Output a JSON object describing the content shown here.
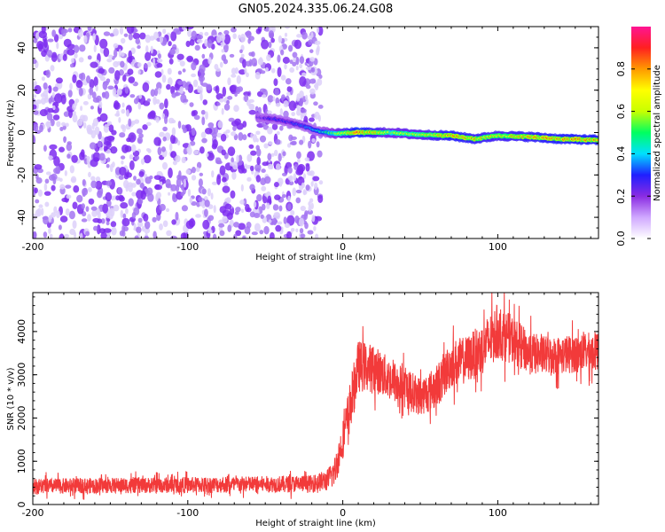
{
  "title": "GN05.2024.335.06.24.G08",
  "colors": {
    "snr_line": "#f23a3a",
    "scatter_core": "#7c2cf0",
    "scatter_mid": "#a575f2",
    "scatter_faint": "#ddd0fa"
  },
  "chart_data": [
    {
      "type": "heatmap",
      "title": "GN05.2024.335.06.24.G08",
      "xlabel": "Height of straight line (km)",
      "ylabel": "Frequency (Hz)",
      "xlim": [
        -200,
        165
      ],
      "ylim": [
        -50,
        50
      ],
      "xticks": [
        -200,
        -100,
        0,
        100
      ],
      "yticks": [
        -40,
        -20,
        0,
        20,
        40
      ],
      "colorbar": {
        "label": "Normalized spectral amplitude",
        "range": [
          0,
          1
        ],
        "ticks": [
          0.0,
          0.2,
          0.4,
          0.6,
          0.8
        ],
        "tick_labels": [
          "0.0",
          "0.2",
          "0.4",
          "0.6",
          "0.8"
        ],
        "colormap": [
          "#ffffff",
          "#d0a8ff",
          "#8a2be2",
          "#1f1fff",
          "#00e0ff",
          "#00ff60",
          "#c8ff00",
          "#ffff00",
          "#ff9900",
          "#ff2020",
          "#ff1493"
        ]
      },
      "noise_region": {
        "x_range": [
          -200,
          -22
        ],
        "amplitude": [
          0.0,
          0.15
        ]
      },
      "signal_track": [
        {
          "x": -55,
          "freq": 7.0,
          "amp": 0.25
        },
        {
          "x": -45,
          "freq": 6.5,
          "amp": 0.3
        },
        {
          "x": -35,
          "freq": 5.0,
          "amp": 0.3
        },
        {
          "x": -25,
          "freq": 3.0,
          "amp": 0.35
        },
        {
          "x": -15,
          "freq": 0.5,
          "amp": 0.45
        },
        {
          "x": -5,
          "freq": -0.5,
          "amp": 0.6
        },
        {
          "x": 10,
          "freq": 0.0,
          "amp": 0.9
        },
        {
          "x": 30,
          "freq": 0.0,
          "amp": 0.65
        },
        {
          "x": 50,
          "freq": -1.0,
          "amp": 0.7
        },
        {
          "x": 70,
          "freq": -1.5,
          "amp": 0.85
        },
        {
          "x": 85,
          "freq": -3.0,
          "amp": 0.8
        },
        {
          "x": 100,
          "freq": -1.5,
          "amp": 0.75
        },
        {
          "x": 120,
          "freq": -2.0,
          "amp": 0.8
        },
        {
          "x": 140,
          "freq": -3.0,
          "amp": 0.85
        },
        {
          "x": 165,
          "freq": -3.5,
          "amp": 0.85
        }
      ],
      "grid": false,
      "legend": "none"
    },
    {
      "type": "line",
      "xlabel": "Height of straight line (km)",
      "ylabel": "SNR (10 * v/v)",
      "xlim": [
        -200,
        165
      ],
      "ylim": [
        0,
        4900
      ],
      "xticks": [
        -200,
        -100,
        0,
        100
      ],
      "yticks": [
        0,
        1000,
        2000,
        3000,
        4000
      ],
      "series": [
        {
          "x": [
            -200,
            -150,
            -100,
            -50,
            -20,
            -10,
            -5,
            0,
            5,
            10,
            20,
            30,
            40,
            50,
            60,
            70,
            80,
            90,
            100,
            110,
            120,
            130,
            140,
            150,
            165
          ],
          "values": [
            420,
            440,
            450,
            470,
            480,
            560,
            780,
            1500,
            2300,
            3200,
            3150,
            2900,
            2700,
            2500,
            2700,
            3250,
            3350,
            3600,
            4000,
            3800,
            3500,
            3450,
            3450,
            3500,
            3550
          ],
          "noise_amplitude": [
            180,
            180,
            190,
            190,
            200,
            250,
            350,
            450,
            600,
            600,
            550,
            500,
            480,
            450,
            500,
            550,
            550,
            600,
            650,
            550,
            500,
            450,
            450,
            450,
            450
          ]
        }
      ],
      "grid": false,
      "legend": "none"
    }
  ]
}
